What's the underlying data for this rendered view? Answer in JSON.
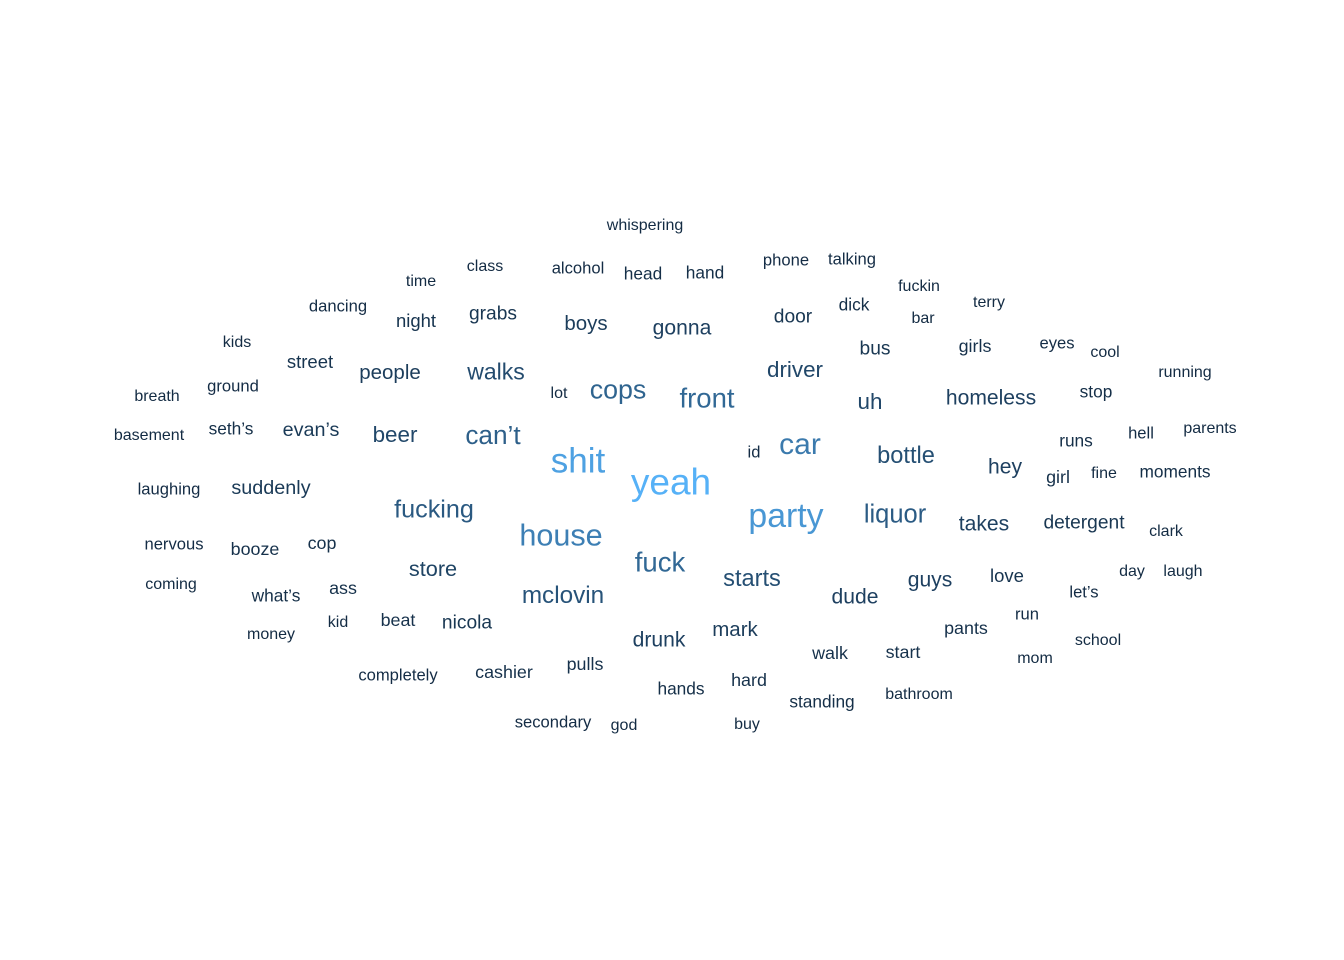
{
  "chart_data": {
    "type": "wordcloud",
    "title": "",
    "colors": {
      "low": "#132B43",
      "high": "#56B1F7"
    },
    "words": [
      {
        "text": "yeah",
        "value": 10
      },
      {
        "text": "shit",
        "value": 9.4
      },
      {
        "text": "party",
        "value": 9
      },
      {
        "text": "house",
        "value": 8
      },
      {
        "text": "car",
        "value": 7.8
      },
      {
        "text": "front",
        "value": 7
      },
      {
        "text": "fuck",
        "value": 7
      },
      {
        "text": "cops",
        "value": 6.8
      },
      {
        "text": "can’t",
        "value": 6.6
      },
      {
        "text": "liquor",
        "value": 6.4
      },
      {
        "text": "fucking",
        "value": 6.3
      },
      {
        "text": "mclovin",
        "value": 6
      },
      {
        "text": "bottle",
        "value": 5.8
      },
      {
        "text": "starts",
        "value": 5.8
      },
      {
        "text": "walks",
        "value": 5.6
      },
      {
        "text": "driver",
        "value": 5.4
      },
      {
        "text": "uh",
        "value": 5.4
      },
      {
        "text": "beer",
        "value": 5.4
      },
      {
        "text": "store",
        "value": 5.2
      },
      {
        "text": "homeless",
        "value": 5
      },
      {
        "text": "takes",
        "value": 5
      },
      {
        "text": "dude",
        "value": 5
      },
      {
        "text": "guys",
        "value": 5
      },
      {
        "text": "gonna",
        "value": 5
      },
      {
        "text": "hey",
        "value": 5
      },
      {
        "text": "drunk",
        "value": 5
      },
      {
        "text": "people",
        "value": 4.8
      },
      {
        "text": "mark",
        "value": 4.8
      },
      {
        "text": "boys",
        "value": 4.8
      },
      {
        "text": "evan’s",
        "value": 4.6
      },
      {
        "text": "suddenly",
        "value": 4.6
      },
      {
        "text": "detergent",
        "value": 4.4
      },
      {
        "text": "bus",
        "value": 4.4
      },
      {
        "text": "door",
        "value": 4.4
      },
      {
        "text": "grabs",
        "value": 4.4
      },
      {
        "text": "nicola",
        "value": 4.4
      },
      {
        "text": "love",
        "value": 4.2
      },
      {
        "text": "street",
        "value": 4.2
      },
      {
        "text": "night",
        "value": 4.2
      },
      {
        "text": "girls",
        "value": 4
      },
      {
        "text": "walk",
        "value": 4
      },
      {
        "text": "pants",
        "value": 4
      },
      {
        "text": "start",
        "value": 4
      },
      {
        "text": "beat",
        "value": 4
      },
      {
        "text": "pulls",
        "value": 4
      },
      {
        "text": "cop",
        "value": 4
      },
      {
        "text": "ass",
        "value": 4
      },
      {
        "text": "booze",
        "value": 4
      },
      {
        "text": "cashier",
        "value": 4
      },
      {
        "text": "hard",
        "value": 4
      },
      {
        "text": "girl",
        "value": 4
      },
      {
        "text": "runs",
        "value": 3.8
      },
      {
        "text": "moments",
        "value": 3.8
      },
      {
        "text": "seth’s",
        "value": 3.8
      },
      {
        "text": "stop",
        "value": 3.8
      },
      {
        "text": "what’s",
        "value": 3.8
      },
      {
        "text": "standing",
        "value": 3.8
      },
      {
        "text": "hands",
        "value": 3.8
      },
      {
        "text": "dick",
        "value": 3.8
      },
      {
        "text": "head",
        "value": 3.8
      },
      {
        "text": "hand",
        "value": 3.8
      },
      {
        "text": "let’s",
        "value": 3.6
      },
      {
        "text": "hell",
        "value": 3.6
      },
      {
        "text": "eyes",
        "value": 3.6
      },
      {
        "text": "completely",
        "value": 3.6
      },
      {
        "text": "secondary",
        "value": 3.6
      },
      {
        "text": "alcohol",
        "value": 3.6
      },
      {
        "text": "phone",
        "value": 3.6
      },
      {
        "text": "talking",
        "value": 3.6
      },
      {
        "text": "ground",
        "value": 3.6
      },
      {
        "text": "dancing",
        "value": 3.6
      },
      {
        "text": "run",
        "value": 3.6
      },
      {
        "text": "id",
        "value": 3.6
      },
      {
        "text": "laughing",
        "value": 3.6
      },
      {
        "text": "nervous",
        "value": 3.6
      },
      {
        "text": "class",
        "value": 3.4
      },
      {
        "text": "time",
        "value": 3.4
      },
      {
        "text": "fuckin",
        "value": 3.4
      },
      {
        "text": "bar",
        "value": 3.4
      },
      {
        "text": "terry",
        "value": 3.4
      },
      {
        "text": "basement",
        "value": 3.4
      },
      {
        "text": "money",
        "value": 3.4
      },
      {
        "text": "coming",
        "value": 3.4
      },
      {
        "text": "clark",
        "value": 3.4
      },
      {
        "text": "fine",
        "value": 3.4
      },
      {
        "text": "day",
        "value": 3.4
      },
      {
        "text": "laugh",
        "value": 3.4
      },
      {
        "text": "running",
        "value": 3.4
      },
      {
        "text": "parents",
        "value": 3.4
      },
      {
        "text": "breath",
        "value": 3.4
      },
      {
        "text": "kids",
        "value": 3.4
      },
      {
        "text": "school",
        "value": 3.4
      },
      {
        "text": "bathroom",
        "value": 3.4
      },
      {
        "text": "god",
        "value": 3.4
      },
      {
        "text": "buy",
        "value": 3.4
      },
      {
        "text": "kid",
        "value": 3.4
      },
      {
        "text": "mom",
        "value": 3.4
      },
      {
        "text": "cool",
        "value": 3.4
      },
      {
        "text": "lot",
        "value": 3.4
      },
      {
        "text": "whispering",
        "value": 3.4
      }
    ]
  }
}
